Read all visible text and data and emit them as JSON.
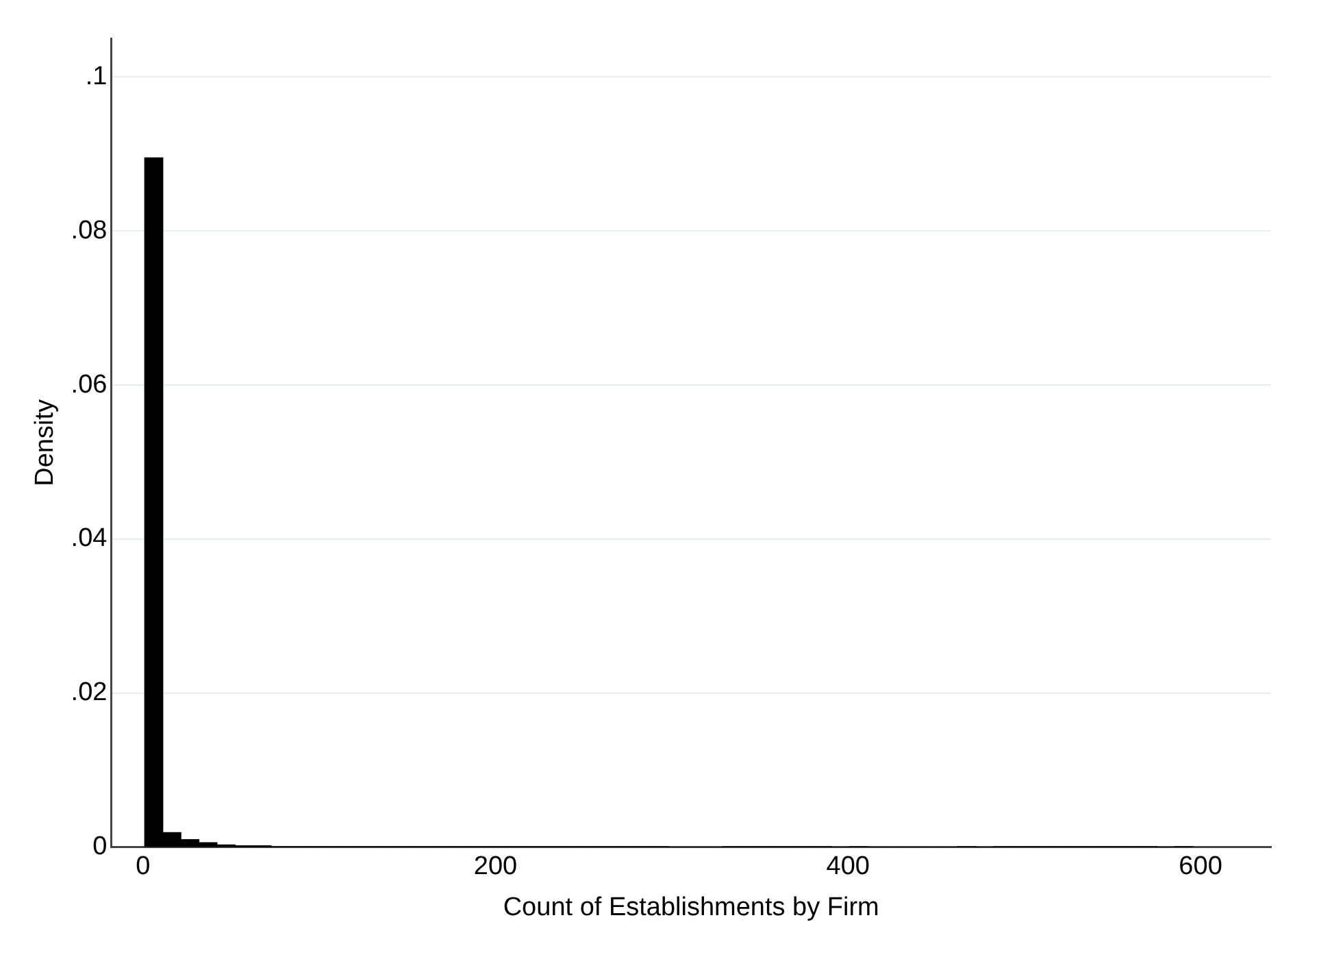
{
  "chart_data": {
    "type": "histogram",
    "xlabel": "Count of Establishments by Firm",
    "ylabel": "Density",
    "bins": [
      1,
      11.25,
      21.5,
      31.75,
      42,
      52.25,
      62.5,
      72.75,
      83,
      93.25,
      103.5,
      113.75,
      124,
      134.25,
      144.5,
      154.75,
      165,
      175.25,
      185.5,
      195.75,
      206,
      216.25,
      226.5,
      236.75,
      247,
      257.25,
      267.5,
      277.75,
      288,
      298.25,
      308.5,
      318.75,
      329,
      339.25,
      349.5,
      359.75,
      370,
      380.25,
      390.5,
      400.75,
      411,
      421.25,
      431.5,
      441.75,
      452,
      462.25,
      472.5,
      482.75,
      493,
      503.25,
      513.5,
      523.75,
      534,
      544.25,
      554.5,
      564.75,
      575,
      585.25,
      595.5
    ],
    "values": [
      0.0895,
      0.0019,
      0.001,
      0.0006,
      0.0003,
      0.0002,
      0.0002,
      0.0001,
      0.0001,
      0.0001,
      0.0001,
      0.0001,
      0.0001,
      0.0001,
      0.0001,
      0.0001,
      0.0001,
      0.0001,
      0.0001,
      0.0001,
      0.0001,
      0.0001,
      0.0001,
      0.0001,
      0.0001,
      0.0001,
      0.0001,
      0.0001,
      0.0001,
      0,
      0,
      0,
      0.0001,
      0.0001,
      0.0001,
      0.0001,
      0.0001,
      0.0001,
      0,
      0.0001,
      0,
      0,
      0,
      0,
      0,
      0.0001,
      0,
      0.0001,
      0.0001,
      0.0001,
      0.0001,
      0.0001,
      0.0001,
      0.0001,
      0.0001,
      0.0001,
      0,
      0.0001
    ],
    "color": "#000000",
    "xlim": [
      -18,
      640
    ],
    "xticks": [
      0,
      200,
      400,
      600
    ],
    "ylim": [
      0,
      0.105
    ],
    "yticks": [
      0,
      {
        "value": 0.02,
        "label": ".02"
      },
      {
        "value": 0.04,
        "label": ".04"
      },
      {
        "value": 0.06,
        "label": ".06"
      },
      {
        "value": 0.08,
        "label": ".08"
      },
      {
        "value": 0.1,
        "label": ".1"
      }
    ],
    "grid": "y"
  }
}
